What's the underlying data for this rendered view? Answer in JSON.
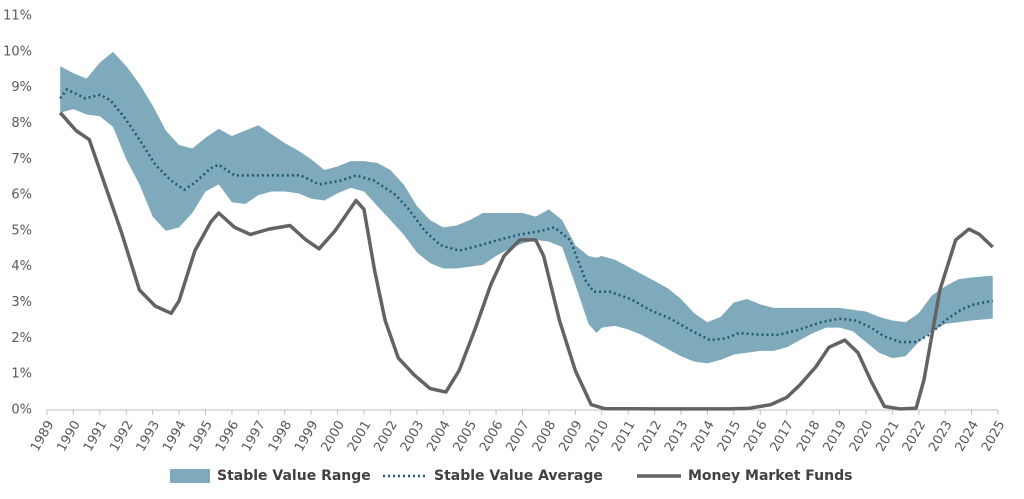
{
  "chart_data": {
    "type": "line",
    "xlim": [
      1989,
      2025
    ],
    "xticks": [
      1989,
      1990,
      1991,
      1992,
      1993,
      1994,
      1995,
      1996,
      1997,
      1998,
      1999,
      2000,
      2001,
      2002,
      2003,
      2004,
      2005,
      2006,
      2007,
      2008,
      2009,
      2010,
      2011,
      2012,
      2013,
      2014,
      2015,
      2016,
      2017,
      2018,
      2019,
      2020,
      2021,
      2022,
      2023,
      2024,
      2025
    ],
    "ylim": [
      0,
      11
    ],
    "yticks": [
      {
        "value": 0,
        "label": "0%"
      },
      {
        "value": 1,
        "label": "1%"
      },
      {
        "value": 2,
        "label": "2%"
      },
      {
        "value": 3,
        "label": "3%"
      },
      {
        "value": 4,
        "label": "4%"
      },
      {
        "value": 5,
        "label": "5%"
      },
      {
        "value": 6,
        "label": "6%"
      },
      {
        "value": 7,
        "label": "7%"
      },
      {
        "value": 8,
        "label": "8%"
      },
      {
        "value": 9,
        "label": "9%"
      },
      {
        "value": 10,
        "label": "10%"
      },
      {
        "value": 11,
        "label": "11%"
      }
    ],
    "grid": false,
    "legend": "bottom",
    "series": [
      {
        "name": "Stable Value Range",
        "kind": "band",
        "color": "#7faabc",
        "x": [
          1989.5,
          1990,
          1990.5,
          1991,
          1991.5,
          1992,
          1992.5,
          1993,
          1993.5,
          1994,
          1994.5,
          1995,
          1995.5,
          1996,
          1996.5,
          1997,
          1997.5,
          1998,
          1998.5,
          1999,
          1999.5,
          2000,
          2000.5,
          2001,
          2001.5,
          2002,
          2002.5,
          2003,
          2003.5,
          2004,
          2004.5,
          2005,
          2005.5,
          2006,
          2006.5,
          2007,
          2007.5,
          2008,
          2008.5,
          2009,
          2009.5,
          2009.8,
          2010,
          2010.5,
          2011,
          2011.5,
          2012,
          2012.5,
          2013,
          2013.5,
          2014,
          2014.5,
          2015,
          2015.5,
          2016,
          2016.5,
          2017,
          2017.5,
          2018,
          2018.5,
          2019,
          2019.5,
          2020,
          2020.5,
          2021,
          2021.5,
          2022,
          2022.5,
          2023,
          2023.5,
          2024,
          2024.8
        ],
        "low": [
          8.3,
          8.4,
          8.25,
          8.2,
          7.9,
          7.0,
          6.3,
          5.4,
          5.0,
          5.1,
          5.5,
          6.1,
          6.3,
          5.8,
          5.75,
          6.0,
          6.1,
          6.1,
          6.05,
          5.9,
          5.85,
          6.05,
          6.2,
          6.1,
          5.7,
          5.3,
          4.9,
          4.4,
          4.1,
          3.95,
          3.95,
          4.0,
          4.05,
          4.3,
          4.5,
          4.65,
          4.75,
          4.7,
          4.55,
          3.5,
          2.4,
          2.15,
          2.3,
          2.35,
          2.25,
          2.1,
          1.9,
          1.7,
          1.5,
          1.35,
          1.3,
          1.4,
          1.55,
          1.6,
          1.65,
          1.65,
          1.75,
          1.95,
          2.15,
          2.3,
          2.3,
          2.2,
          1.9,
          1.6,
          1.45,
          1.5,
          1.9,
          2.2,
          2.4,
          2.45,
          2.5,
          2.55
        ],
        "high": [
          9.6,
          9.4,
          9.25,
          9.7,
          10.0,
          9.6,
          9.1,
          8.5,
          7.8,
          7.4,
          7.3,
          7.6,
          7.85,
          7.65,
          7.8,
          7.95,
          7.7,
          7.45,
          7.25,
          7.0,
          6.7,
          6.8,
          6.95,
          6.95,
          6.9,
          6.7,
          6.3,
          5.7,
          5.3,
          5.1,
          5.15,
          5.3,
          5.5,
          5.5,
          5.5,
          5.5,
          5.4,
          5.6,
          5.3,
          4.6,
          4.3,
          4.25,
          4.3,
          4.2,
          4.0,
          3.8,
          3.6,
          3.4,
          3.1,
          2.7,
          2.45,
          2.6,
          3.0,
          3.1,
          2.95,
          2.85,
          2.85,
          2.85,
          2.85,
          2.85,
          2.85,
          2.8,
          2.75,
          2.6,
          2.5,
          2.45,
          2.7,
          3.2,
          3.45,
          3.65,
          3.7,
          3.75
        ]
      },
      {
        "name": "Stable Value Average",
        "kind": "dotted",
        "color": "#1d5a73",
        "x": [
          1989.5,
          1989.75,
          1990.45,
          1991,
          1991.4,
          1992,
          1992.5,
          1993.1,
          1993.7,
          1994.2,
          1994.6,
          1995.2,
          1995.5,
          1996.1,
          1997.1,
          1997.8,
          1998.6,
          1999.3,
          2000.1,
          2000.7,
          2001.4,
          2002.2,
          2002.7,
          2003.3,
          2003.9,
          2004.6,
          2005.4,
          2006.1,
          2006.9,
          2007.7,
          2008.2,
          2008.8,
          2009.4,
          2009.7,
          2010.3,
          2011.1,
          2011.8,
          2012.6,
          2013.3,
          2014.1,
          2014.7,
          2015.2,
          2016,
          2016.7,
          2017.5,
          2018.3,
          2019,
          2019.6,
          2020.2,
          2020.7,
          2021.3,
          2021.9,
          2022.4,
          2023,
          2023.6,
          2024.1,
          2024.8
        ],
        "values": [
          8.7,
          8.95,
          8.7,
          8.8,
          8.65,
          8.1,
          7.55,
          6.85,
          6.4,
          6.15,
          6.35,
          6.75,
          6.85,
          6.55,
          6.55,
          6.55,
          6.55,
          6.3,
          6.4,
          6.55,
          6.4,
          6.0,
          5.6,
          5.0,
          4.6,
          4.45,
          4.6,
          4.75,
          4.9,
          5.0,
          5.1,
          4.75,
          3.6,
          3.3,
          3.3,
          3.1,
          2.8,
          2.55,
          2.25,
          1.95,
          2.0,
          2.15,
          2.1,
          2.1,
          2.25,
          2.45,
          2.55,
          2.5,
          2.3,
          2.05,
          1.9,
          1.9,
          2.1,
          2.5,
          2.8,
          2.95,
          3.05
        ]
      },
      {
        "name": "Money Market Funds",
        "kind": "solid",
        "color": "#636363",
        "x": [
          1989.5,
          1990.1,
          1990.6,
          1991,
          1991.8,
          1992.5,
          1993.1,
          1993.7,
          1994,
          1994.6,
          1995.2,
          1995.5,
          1996.1,
          1996.7,
          1997.4,
          1998.2,
          1998.8,
          1999.3,
          1999.9,
          2000.7,
          2001,
          2001.4,
          2001.8,
          2002.3,
          2002.9,
          2003.5,
          2004.1,
          2004.6,
          2005.2,
          2005.8,
          2006.3,
          2006.9,
          2007.5,
          2007.8,
          2008.4,
          2009,
          2009.6,
          2010.1,
          2012,
          2014.85,
          2015.6,
          2016.4,
          2017,
          2017.5,
          2018.1,
          2018.6,
          2019.2,
          2019.7,
          2020.2,
          2020.7,
          2021.3,
          2021.9,
          2022.2,
          2022.8,
          2023.4,
          2023.9,
          2024.3,
          2024.8
        ],
        "values": [
          8.3,
          7.8,
          7.55,
          6.7,
          5.0,
          3.35,
          2.9,
          2.7,
          3.05,
          4.45,
          5.25,
          5.5,
          5.1,
          4.9,
          5.05,
          5.15,
          4.75,
          4.5,
          5.0,
          5.85,
          5.6,
          3.9,
          2.5,
          1.45,
          0.98,
          0.6,
          0.5,
          1.1,
          2.25,
          3.5,
          4.3,
          4.75,
          4.75,
          4.3,
          2.5,
          1.1,
          0.15,
          0.04,
          0.03,
          0.03,
          0.05,
          0.15,
          0.35,
          0.7,
          1.2,
          1.75,
          1.95,
          1.6,
          0.8,
          0.1,
          0.03,
          0.05,
          0.85,
          3.35,
          4.75,
          5.05,
          4.9,
          4.55
        ]
      }
    ]
  }
}
